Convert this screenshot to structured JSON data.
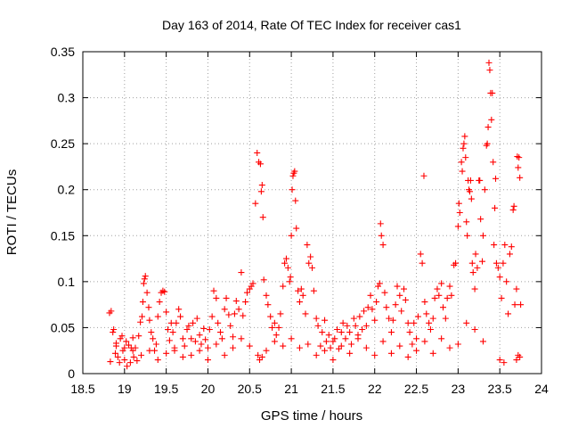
{
  "chart_data": {
    "type": "scatter",
    "title": "Day 163 of 2014, Rate Of TEC Index for receiver cas1",
    "xlabel": "GPS time / hours",
    "ylabel": "ROTI / TECUs",
    "xlim": [
      18.5,
      24
    ],
    "ylim": [
      0,
      0.35
    ],
    "x_ticks": [
      18.5,
      19,
      19.5,
      20,
      20.5,
      21,
      21.5,
      22,
      22.5,
      23,
      23.5,
      24
    ],
    "x_tick_labels": [
      "18.5",
      "19",
      "19.5",
      "20",
      "20.5",
      "21",
      "21.5",
      "22",
      "22.5",
      "23",
      "23.5",
      "24"
    ],
    "y_ticks": [
      0,
      0.05,
      0.1,
      0.15,
      0.2,
      0.25,
      0.3,
      0.35
    ],
    "y_tick_labels": [
      "0",
      "0.05",
      "0.1",
      "0.15",
      "0.2",
      "0.25",
      "0.3",
      "0.35"
    ],
    "grid": true,
    "marker": "+",
    "color": "#ff0000",
    "series": [
      {
        "name": "cas1",
        "points": [
          [
            18.82,
            0.066
          ],
          [
            18.84,
            0.068
          ],
          [
            18.83,
            0.013
          ],
          [
            18.86,
            0.045
          ],
          [
            18.87,
            0.048
          ],
          [
            18.89,
            0.022
          ],
          [
            18.9,
            0.033
          ],
          [
            18.92,
            0.018
          ],
          [
            18.94,
            0.012
          ],
          [
            18.95,
            0.038
          ],
          [
            18.97,
            0.041
          ],
          [
            18.98,
            0.025
          ],
          [
            19.0,
            0.015
          ],
          [
            19.02,
            0.035
          ],
          [
            19.03,
            0.008
          ],
          [
            19.05,
            0.031
          ],
          [
            19.07,
            0.012
          ],
          [
            19.08,
            0.028
          ],
          [
            19.1,
            0.039
          ],
          [
            19.11,
            0.018
          ],
          [
            19.13,
            0.028
          ],
          [
            19.15,
            0.014
          ],
          [
            19.17,
            0.041
          ],
          [
            19.19,
            0.056
          ],
          [
            19.21,
            0.062
          ],
          [
            19.22,
            0.078
          ],
          [
            19.23,
            0.098
          ],
          [
            19.24,
            0.103
          ],
          [
            19.25,
            0.106
          ],
          [
            19.27,
            0.088
          ],
          [
            19.29,
            0.072
          ],
          [
            19.3,
            0.058
          ],
          [
            19.32,
            0.045
          ],
          [
            19.34,
            0.038
          ],
          [
            19.36,
            0.025
          ],
          [
            19.38,
            0.032
          ],
          [
            19.4,
            0.062
          ],
          [
            19.42,
            0.078
          ],
          [
            19.44,
            0.088
          ],
          [
            19.46,
            0.09
          ],
          [
            19.48,
            0.089
          ],
          [
            19.5,
            0.067
          ],
          [
            19.52,
            0.048
          ],
          [
            19.54,
            0.036
          ],
          [
            19.56,
            0.055
          ],
          [
            19.58,
            0.045
          ],
          [
            19.6,
            0.025
          ],
          [
            19.62,
            0.055
          ],
          [
            19.65,
            0.07
          ],
          [
            19.67,
            0.062
          ],
          [
            19.7,
            0.038
          ],
          [
            19.72,
            0.03
          ],
          [
            19.75,
            0.048
          ],
          [
            19.77,
            0.052
          ],
          [
            19.8,
            0.038
          ],
          [
            19.82,
            0.055
          ],
          [
            19.85,
            0.035
          ],
          [
            19.87,
            0.06
          ],
          [
            19.9,
            0.042
          ],
          [
            19.92,
            0.032
          ],
          [
            19.95,
            0.049
          ],
          [
            19.97,
            0.037
          ],
          [
            20.0,
            0.028
          ],
          [
            20.02,
            0.048
          ],
          [
            20.05,
            0.062
          ],
          [
            20.07,
            0.09
          ],
          [
            20.1,
            0.082
          ],
          [
            20.12,
            0.055
          ],
          [
            20.15,
            0.045
          ],
          [
            20.17,
            0.038
          ],
          [
            20.2,
            0.07
          ],
          [
            20.22,
            0.082
          ],
          [
            20.25,
            0.064
          ],
          [
            20.27,
            0.052
          ],
          [
            20.3,
            0.04
          ],
          [
            20.32,
            0.065
          ],
          [
            20.34,
            0.079
          ],
          [
            20.37,
            0.07
          ],
          [
            20.4,
            0.11
          ],
          [
            20.42,
            0.063
          ],
          [
            20.45,
            0.078
          ],
          [
            20.47,
            0.088
          ],
          [
            20.5,
            0.092
          ],
          [
            20.52,
            0.095
          ],
          [
            20.54,
            0.098
          ],
          [
            20.57,
            0.185
          ],
          [
            20.59,
            0.24
          ],
          [
            20.61,
            0.23
          ],
          [
            20.63,
            0.228
          ],
          [
            20.64,
            0.198
          ],
          [
            20.65,
            0.205
          ],
          [
            20.66,
            0.17
          ],
          [
            20.67,
            0.102
          ],
          [
            20.7,
            0.085
          ],
          [
            20.72,
            0.075
          ],
          [
            20.75,
            0.062
          ],
          [
            20.77,
            0.05
          ],
          [
            20.6,
            0.02
          ],
          [
            20.62,
            0.015
          ],
          [
            20.65,
            0.018
          ],
          [
            20.8,
            0.055
          ],
          [
            20.82,
            0.042
          ],
          [
            20.85,
            0.05
          ],
          [
            20.87,
            0.065
          ],
          [
            20.9,
            0.095
          ],
          [
            20.92,
            0.12
          ],
          [
            20.94,
            0.125
          ],
          [
            20.96,
            0.115
          ],
          [
            20.98,
            0.1
          ],
          [
            20.99,
            0.105
          ],
          [
            21.0,
            0.15
          ],
          [
            21.01,
            0.2
          ],
          [
            21.02,
            0.215
          ],
          [
            21.03,
            0.218
          ],
          [
            21.04,
            0.22
          ],
          [
            21.05,
            0.188
          ],
          [
            21.06,
            0.158
          ],
          [
            21.08,
            0.09
          ],
          [
            21.1,
            0.078
          ],
          [
            21.12,
            0.092
          ],
          [
            21.14,
            0.085
          ],
          [
            21.17,
            0.065
          ],
          [
            21.19,
            0.14
          ],
          [
            21.21,
            0.12
          ],
          [
            21.23,
            0.127
          ],
          [
            21.25,
            0.115
          ],
          [
            21.27,
            0.09
          ],
          [
            21.3,
            0.06
          ],
          [
            21.32,
            0.052
          ],
          [
            21.35,
            0.03
          ],
          [
            21.37,
            0.045
          ],
          [
            21.4,
            0.058
          ],
          [
            21.42,
            0.035
          ],
          [
            21.45,
            0.042
          ],
          [
            21.47,
            0.028
          ],
          [
            21.5,
            0.015
          ],
          [
            21.52,
            0.038
          ],
          [
            21.55,
            0.048
          ],
          [
            21.57,
            0.027
          ],
          [
            21.6,
            0.045
          ],
          [
            21.62,
            0.055
          ],
          [
            21.65,
            0.038
          ],
          [
            21.67,
            0.052
          ],
          [
            21.7,
            0.045
          ],
          [
            21.72,
            0.032
          ],
          [
            21.75,
            0.06
          ],
          [
            21.77,
            0.052
          ],
          [
            21.8,
            0.042
          ],
          [
            21.82,
            0.062
          ],
          [
            21.85,
            0.048
          ],
          [
            21.87,
            0.068
          ],
          [
            21.9,
            0.052
          ],
          [
            21.92,
            0.072
          ],
          [
            21.95,
            0.085
          ],
          [
            21.97,
            0.07
          ],
          [
            22.0,
            0.058
          ],
          [
            22.02,
            0.078
          ],
          [
            22.04,
            0.095
          ],
          [
            22.06,
            0.098
          ],
          [
            22.07,
            0.163
          ],
          [
            22.08,
            0.15
          ],
          [
            22.1,
            0.14
          ],
          [
            22.12,
            0.088
          ],
          [
            22.14,
            0.072
          ],
          [
            22.17,
            0.06
          ],
          [
            22.2,
            0.045
          ],
          [
            22.22,
            0.058
          ],
          [
            22.25,
            0.075
          ],
          [
            22.27,
            0.095
          ],
          [
            22.3,
            0.085
          ],
          [
            22.32,
            0.068
          ],
          [
            22.35,
            0.092
          ],
          [
            22.37,
            0.08
          ],
          [
            22.4,
            0.055
          ],
          [
            22.42,
            0.045
          ],
          [
            22.45,
            0.032
          ],
          [
            22.47,
            0.055
          ],
          [
            22.5,
            0.038
          ],
          [
            22.52,
            0.062
          ],
          [
            22.55,
            0.13
          ],
          [
            22.57,
            0.12
          ],
          [
            22.59,
            0.215
          ],
          [
            22.6,
            0.078
          ],
          [
            22.62,
            0.065
          ],
          [
            22.65,
            0.055
          ],
          [
            22.67,
            0.048
          ],
          [
            22.7,
            0.06
          ],
          [
            22.72,
            0.082
          ],
          [
            22.75,
            0.092
          ],
          [
            22.77,
            0.085
          ],
          [
            22.8,
            0.098
          ],
          [
            22.82,
            0.072
          ],
          [
            22.85,
            0.06
          ],
          [
            22.87,
            0.082
          ],
          [
            22.9,
            0.095
          ],
          [
            22.92,
            0.085
          ],
          [
            22.95,
            0.118
          ],
          [
            22.97,
            0.12
          ],
          [
            23.0,
            0.16
          ],
          [
            23.01,
            0.185
          ],
          [
            23.02,
            0.175
          ],
          [
            23.04,
            0.23
          ],
          [
            23.05,
            0.22
          ],
          [
            23.06,
            0.245
          ],
          [
            23.07,
            0.25
          ],
          [
            23.08,
            0.258
          ],
          [
            23.09,
            0.235
          ],
          [
            23.1,
            0.165
          ],
          [
            23.11,
            0.15
          ],
          [
            23.12,
            0.21
          ],
          [
            23.13,
            0.2
          ],
          [
            23.14,
            0.198
          ],
          [
            23.15,
            0.21
          ],
          [
            23.16,
            0.19
          ],
          [
            23.17,
            0.12
          ],
          [
            23.18,
            0.11
          ],
          [
            23.2,
            0.092
          ],
          [
            23.21,
            0.13
          ],
          [
            23.23,
            0.115
          ],
          [
            23.25,
            0.21
          ],
          [
            23.26,
            0.21
          ],
          [
            23.27,
            0.168
          ],
          [
            23.29,
            0.122
          ],
          [
            23.3,
            0.15
          ],
          [
            23.32,
            0.2
          ],
          [
            23.34,
            0.248
          ],
          [
            23.35,
            0.25
          ],
          [
            23.36,
            0.268
          ],
          [
            23.37,
            0.338
          ],
          [
            23.38,
            0.33
          ],
          [
            23.39,
            0.305
          ],
          [
            23.4,
            0.276
          ],
          [
            23.41,
            0.305
          ],
          [
            23.42,
            0.23
          ],
          [
            23.43,
            0.14
          ],
          [
            23.44,
            0.18
          ],
          [
            23.45,
            0.212
          ],
          [
            23.46,
            0.12
          ],
          [
            23.48,
            0.115
          ],
          [
            23.5,
            0.105
          ],
          [
            23.52,
            0.082
          ],
          [
            23.54,
            0.12
          ],
          [
            23.56,
            0.14
          ],
          [
            23.58,
            0.1
          ],
          [
            23.6,
            0.065
          ],
          [
            23.62,
            0.13
          ],
          [
            23.64,
            0.138
          ],
          [
            23.66,
            0.178
          ],
          [
            23.67,
            0.182
          ],
          [
            23.68,
            0.075
          ],
          [
            23.7,
            0.092
          ],
          [
            23.71,
            0.236
          ],
          [
            23.72,
            0.224
          ],
          [
            23.73,
            0.235
          ],
          [
            23.74,
            0.213
          ],
          [
            23.75,
            0.075
          ],
          [
            23.7,
            0.015
          ],
          [
            23.72,
            0.02
          ],
          [
            23.74,
            0.018
          ],
          [
            23.5,
            0.015
          ],
          [
            23.55,
            0.012
          ],
          [
            23.3,
            0.035
          ],
          [
            23.2,
            0.048
          ],
          [
            23.1,
            0.055
          ],
          [
            23.0,
            0.032
          ],
          [
            22.9,
            0.028
          ],
          [
            22.8,
            0.038
          ],
          [
            22.7,
            0.022
          ],
          [
            22.6,
            0.035
          ],
          [
            22.5,
            0.025
          ],
          [
            22.4,
            0.018
          ],
          [
            22.3,
            0.03
          ],
          [
            22.2,
            0.022
          ],
          [
            22.1,
            0.035
          ],
          [
            22.0,
            0.02
          ],
          [
            21.9,
            0.028
          ],
          [
            21.8,
            0.038
          ],
          [
            21.7,
            0.022
          ],
          [
            21.6,
            0.03
          ],
          [
            21.5,
            0.035
          ],
          [
            21.4,
            0.025
          ],
          [
            21.3,
            0.02
          ],
          [
            21.2,
            0.032
          ],
          [
            21.1,
            0.028
          ],
          [
            21.0,
            0.038
          ],
          [
            20.9,
            0.03
          ],
          [
            20.8,
            0.035
          ],
          [
            20.7,
            0.025
          ],
          [
            20.5,
            0.03
          ],
          [
            20.4,
            0.038
          ],
          [
            20.3,
            0.028
          ],
          [
            20.2,
            0.02
          ],
          [
            20.1,
            0.032
          ],
          [
            20.0,
            0.015
          ],
          [
            19.9,
            0.025
          ],
          [
            19.8,
            0.02
          ],
          [
            19.7,
            0.018
          ],
          [
            19.6,
            0.028
          ],
          [
            19.5,
            0.022
          ],
          [
            19.4,
            0.015
          ],
          [
            19.3,
            0.025
          ],
          [
            19.2,
            0.02
          ],
          [
            19.1,
            0.025
          ],
          [
            19.0,
            0.028
          ],
          [
            18.9,
            0.03
          ]
        ]
      }
    ]
  }
}
